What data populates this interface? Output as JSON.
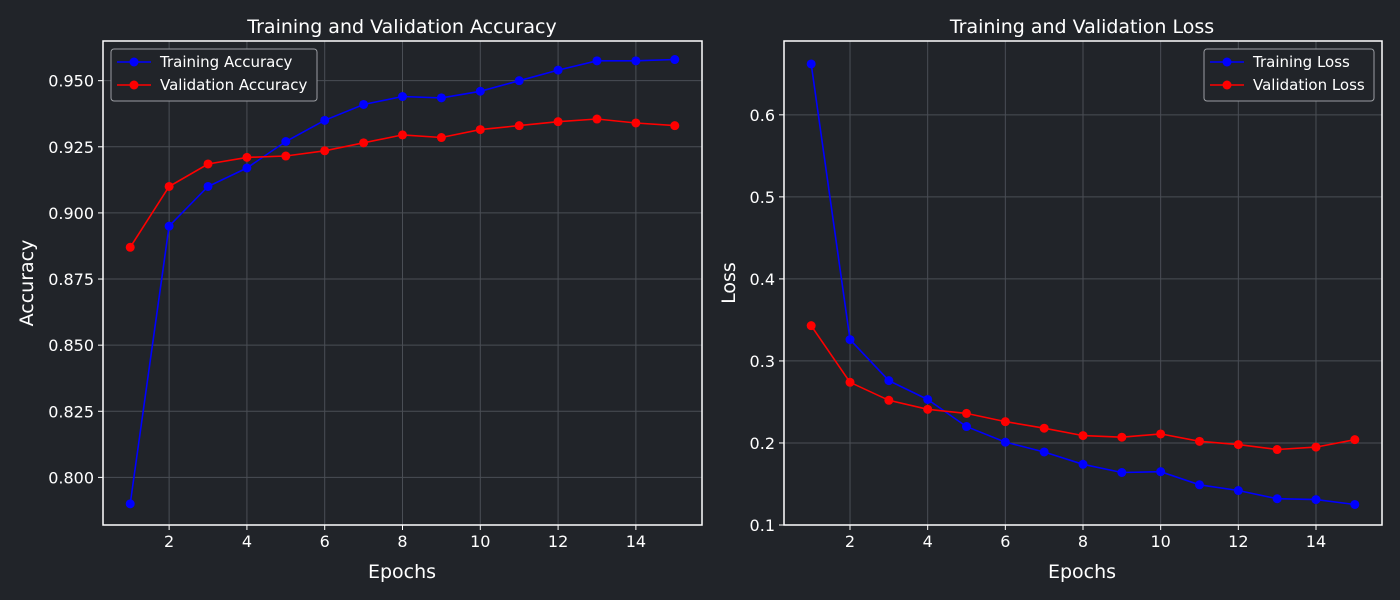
{
  "chart_data": [
    {
      "type": "line",
      "title": "Training and Validation Accuracy",
      "xlabel": "Epochs",
      "ylabel": "Accuracy",
      "x": [
        1,
        2,
        3,
        4,
        5,
        6,
        7,
        8,
        9,
        10,
        11,
        12,
        13,
        14,
        15
      ],
      "xlim": [
        0.3,
        15.7
      ],
      "ylim": [
        0.782,
        0.965
      ],
      "xticks": [
        2,
        4,
        6,
        8,
        10,
        12,
        14
      ],
      "yticks": [
        0.8,
        0.825,
        0.85,
        0.875,
        0.9,
        0.925,
        0.95
      ],
      "ytick_labels": [
        "0.800",
        "0.825",
        "0.850",
        "0.875",
        "0.900",
        "0.925",
        "0.950"
      ],
      "grid": true,
      "legend_position": "top-left",
      "series": [
        {
          "name": "Training Accuracy",
          "color": "#0000ff",
          "values": [
            0.79,
            0.895,
            0.91,
            0.917,
            0.927,
            0.935,
            0.941,
            0.944,
            0.9435,
            0.946,
            0.95,
            0.954,
            0.9575,
            0.9575,
            0.958
          ]
        },
        {
          "name": "Validation Accuracy",
          "color": "#ff0000",
          "values": [
            0.887,
            0.91,
            0.9185,
            0.921,
            0.9215,
            0.9235,
            0.9265,
            0.9295,
            0.9285,
            0.9315,
            0.933,
            0.9345,
            0.9355,
            0.934,
            0.933
          ]
        }
      ]
    },
    {
      "type": "line",
      "title": "Training and Validation Loss",
      "xlabel": "Epochs",
      "ylabel": "Loss",
      "x": [
        1,
        2,
        3,
        4,
        5,
        6,
        7,
        8,
        9,
        10,
        11,
        12,
        13,
        14,
        15
      ],
      "xlim": [
        0.3,
        15.7
      ],
      "ylim": [
        0.1,
        0.69
      ],
      "xticks": [
        2,
        4,
        6,
        8,
        10,
        12,
        14
      ],
      "yticks": [
        0.1,
        0.2,
        0.3,
        0.4,
        0.5,
        0.6
      ],
      "ytick_labels": [
        "0.1",
        "0.2",
        "0.3",
        "0.4",
        "0.5",
        "0.6"
      ],
      "grid": true,
      "legend_position": "top-right",
      "series": [
        {
          "name": "Training Loss",
          "color": "#0000ff",
          "values": [
            0.662,
            0.326,
            0.276,
            0.253,
            0.22,
            0.201,
            0.189,
            0.174,
            0.164,
            0.165,
            0.149,
            0.142,
            0.132,
            0.131,
            0.125
          ]
        },
        {
          "name": "Validation Loss",
          "color": "#ff0000",
          "values": [
            0.343,
            0.274,
            0.252,
            0.241,
            0.236,
            0.226,
            0.218,
            0.209,
            0.207,
            0.211,
            0.202,
            0.198,
            0.192,
            0.195,
            0.204
          ]
        }
      ]
    }
  ]
}
